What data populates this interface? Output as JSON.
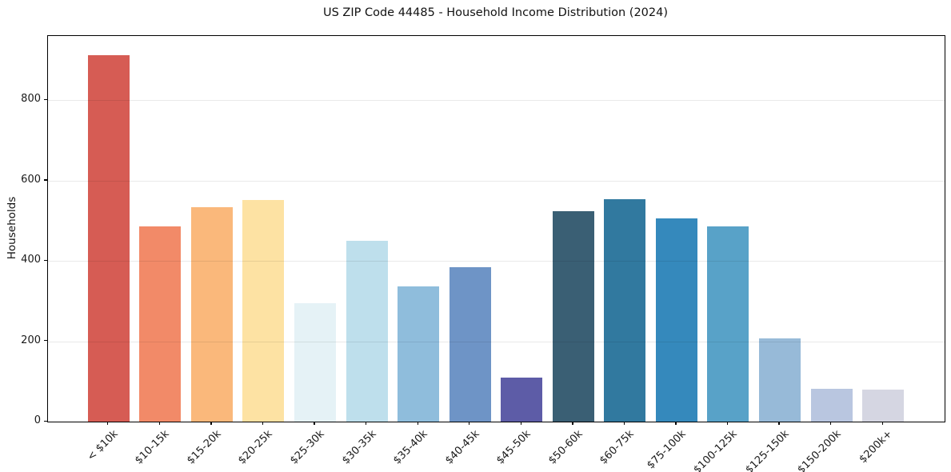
{
  "chart_data": {
    "type": "bar",
    "title": "US ZIP Code 44485 - Household Income Distribution (2024)",
    "xlabel": "",
    "ylabel": "Households",
    "categories": [
      "< $10k",
      "$10-15k",
      "$15-20k",
      "$20-25k",
      "$25-30k",
      "$30-35k",
      "$35-40k",
      "$40-45k",
      "$45-50k",
      "$50-60k",
      "$60-75k",
      "$75-100k",
      "$100-125k",
      "$125-150k",
      "$150-200k",
      "$200k+"
    ],
    "values": [
      912,
      486,
      533,
      552,
      295,
      450,
      336,
      385,
      110,
      524,
      553,
      506,
      486,
      207,
      81,
      79
    ],
    "bar_colors": [
      "#d65c54",
      "#f28a68",
      "#fab87b",
      "#fde2a3",
      "#e5f2f6",
      "#bedfec",
      "#8fbddc",
      "#6e94c6",
      "#5d5ca7",
      "#3a5f74",
      "#31799f",
      "#3589bc",
      "#58a2c8",
      "#97bad8",
      "#b9c6e0",
      "#d5d6e2"
    ],
    "ylim": [
      0,
      960
    ],
    "yticks": [
      0,
      200,
      400,
      600,
      800
    ],
    "grid": "horizontal-only",
    "legend": "none",
    "x_tick_rotation": 45
  },
  "colors": {
    "background": "#ffffff",
    "spine": "#000000",
    "grid": "#e8e8e8",
    "text": "#191919"
  }
}
